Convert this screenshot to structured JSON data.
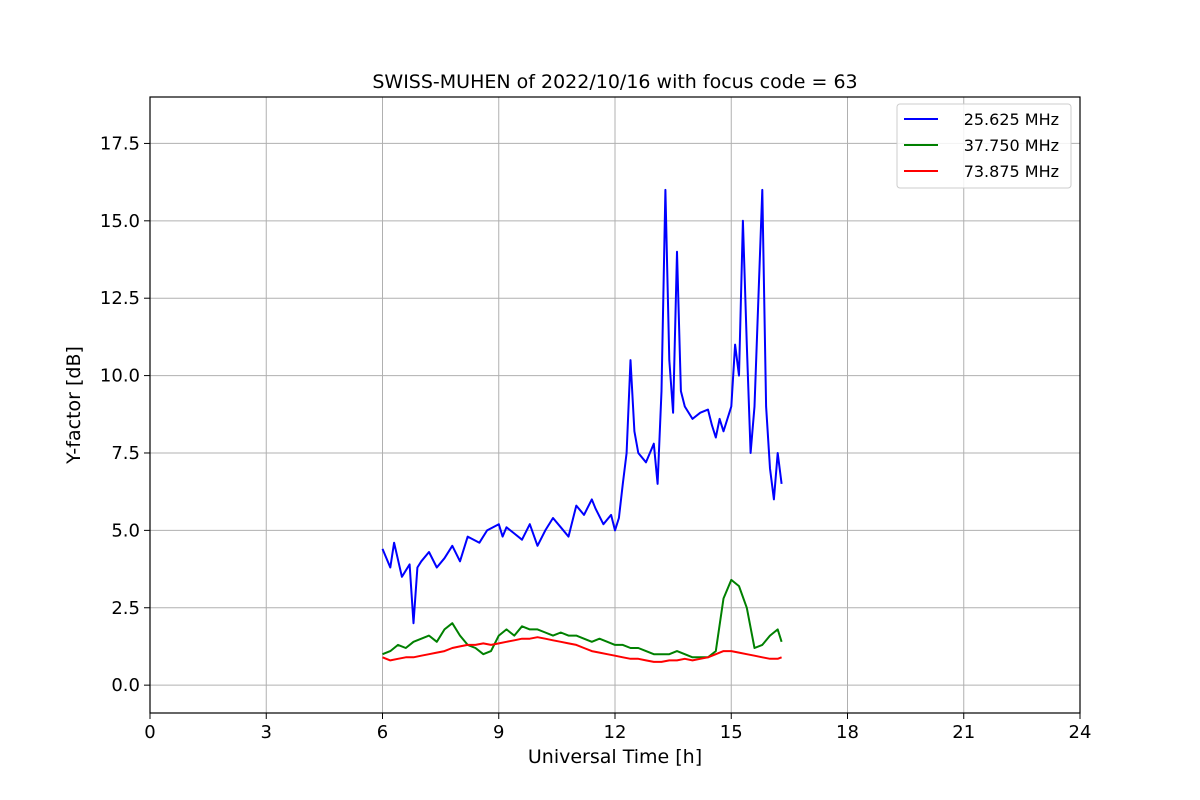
{
  "chart_data": {
    "type": "line",
    "title": "SWISS-MUHEN of 2022/10/16 with focus code = 63",
    "xlabel": "Universal Time [h]",
    "ylabel": "Y-factor [dB]",
    "xlim": [
      0,
      24
    ],
    "ylim": [
      -0.9,
      19.0
    ],
    "xticks": [
      0,
      3,
      6,
      9,
      12,
      15,
      18,
      21,
      24
    ],
    "xtick_labels": [
      "0",
      "3",
      "6",
      "9",
      "12",
      "15",
      "18",
      "21",
      "24"
    ],
    "yticks": [
      0.0,
      2.5,
      5.0,
      7.5,
      10.0,
      12.5,
      15.0,
      17.5
    ],
    "ytick_labels": [
      "0.0",
      "2.5",
      "5.0",
      "7.5",
      "10.0",
      "12.5",
      "15.0",
      "17.5"
    ],
    "grid": true,
    "legend_position": "top-right",
    "series": [
      {
        "name": "25.625 MHz",
        "color": "#0000ff",
        "x": [
          6.0,
          6.2,
          6.3,
          6.5,
          6.7,
          6.8,
          6.9,
          7.0,
          7.2,
          7.4,
          7.6,
          7.8,
          8.0,
          8.2,
          8.5,
          8.7,
          9.0,
          9.1,
          9.2,
          9.4,
          9.6,
          9.8,
          10.0,
          10.2,
          10.4,
          10.6,
          10.8,
          11.0,
          11.2,
          11.4,
          11.5,
          11.7,
          11.9,
          12.0,
          12.1,
          12.2,
          12.3,
          12.4,
          12.5,
          12.6,
          12.8,
          13.0,
          13.1,
          13.2,
          13.3,
          13.4,
          13.5,
          13.6,
          13.7,
          13.8,
          14.0,
          14.2,
          14.4,
          14.5,
          14.6,
          14.7,
          14.8,
          15.0,
          15.1,
          15.2,
          15.3,
          15.4,
          15.5,
          15.6,
          15.7,
          15.8,
          15.9,
          16.0,
          16.1,
          16.2,
          16.3
        ],
        "y": [
          4.4,
          3.8,
          4.6,
          3.5,
          3.9,
          2.0,
          3.8,
          4.0,
          4.3,
          3.8,
          4.1,
          4.5,
          4.0,
          4.8,
          4.6,
          5.0,
          5.2,
          4.8,
          5.1,
          4.9,
          4.7,
          5.2,
          4.5,
          5.0,
          5.4,
          5.1,
          4.8,
          5.8,
          5.5,
          6.0,
          5.7,
          5.2,
          5.5,
          5.0,
          5.4,
          6.5,
          7.5,
          10.5,
          8.2,
          7.5,
          7.2,
          7.8,
          6.5,
          9.5,
          16.0,
          10.5,
          8.8,
          14.0,
          9.5,
          9.0,
          8.6,
          8.8,
          8.9,
          8.4,
          8.0,
          8.6,
          8.2,
          9.0,
          11.0,
          10.0,
          15.0,
          11.0,
          7.5,
          9.0,
          12.5,
          16.0,
          9.0,
          7.0,
          6.0,
          7.5,
          6.5
        ]
      },
      {
        "name": "37.750 MHz",
        "color": "#008000",
        "x": [
          6.0,
          6.2,
          6.4,
          6.6,
          6.8,
          7.0,
          7.2,
          7.4,
          7.6,
          7.8,
          8.0,
          8.2,
          8.4,
          8.6,
          8.8,
          9.0,
          9.2,
          9.4,
          9.6,
          9.8,
          10.0,
          10.2,
          10.4,
          10.6,
          10.8,
          11.0,
          11.2,
          11.4,
          11.6,
          11.8,
          12.0,
          12.2,
          12.4,
          12.6,
          12.8,
          13.0,
          13.2,
          13.4,
          13.6,
          13.8,
          14.0,
          14.2,
          14.4,
          14.6,
          14.8,
          15.0,
          15.2,
          15.4,
          15.6,
          15.8,
          16.0,
          16.2,
          16.3
        ],
        "y": [
          1.0,
          1.1,
          1.3,
          1.2,
          1.4,
          1.5,
          1.6,
          1.4,
          1.8,
          2.0,
          1.6,
          1.3,
          1.2,
          1.0,
          1.1,
          1.6,
          1.8,
          1.6,
          1.9,
          1.8,
          1.8,
          1.7,
          1.6,
          1.7,
          1.6,
          1.6,
          1.5,
          1.4,
          1.5,
          1.4,
          1.3,
          1.3,
          1.2,
          1.2,
          1.1,
          1.0,
          1.0,
          1.0,
          1.1,
          1.0,
          0.9,
          0.9,
          0.9,
          1.1,
          2.8,
          3.4,
          3.2,
          2.5,
          1.2,
          1.3,
          1.6,
          1.8,
          1.4
        ]
      },
      {
        "name": "73.875 MHz",
        "color": "#ff0000",
        "x": [
          6.0,
          6.2,
          6.4,
          6.6,
          6.8,
          7.0,
          7.2,
          7.4,
          7.6,
          7.8,
          8.0,
          8.2,
          8.4,
          8.6,
          8.8,
          9.0,
          9.2,
          9.4,
          9.6,
          9.8,
          10.0,
          10.2,
          10.4,
          10.6,
          10.8,
          11.0,
          11.2,
          11.4,
          11.6,
          11.8,
          12.0,
          12.2,
          12.4,
          12.6,
          12.8,
          13.0,
          13.2,
          13.4,
          13.6,
          13.8,
          14.0,
          14.2,
          14.4,
          14.6,
          14.8,
          15.0,
          15.2,
          15.4,
          15.6,
          15.8,
          16.0,
          16.2,
          16.3
        ],
        "y": [
          0.9,
          0.8,
          0.85,
          0.9,
          0.9,
          0.95,
          1.0,
          1.05,
          1.1,
          1.2,
          1.25,
          1.3,
          1.3,
          1.35,
          1.3,
          1.35,
          1.4,
          1.45,
          1.5,
          1.5,
          1.55,
          1.5,
          1.45,
          1.4,
          1.35,
          1.3,
          1.2,
          1.1,
          1.05,
          1.0,
          0.95,
          0.9,
          0.85,
          0.85,
          0.8,
          0.75,
          0.75,
          0.8,
          0.8,
          0.85,
          0.8,
          0.85,
          0.9,
          1.0,
          1.1,
          1.1,
          1.05,
          1.0,
          0.95,
          0.9,
          0.85,
          0.85,
          0.9
        ]
      }
    ]
  }
}
